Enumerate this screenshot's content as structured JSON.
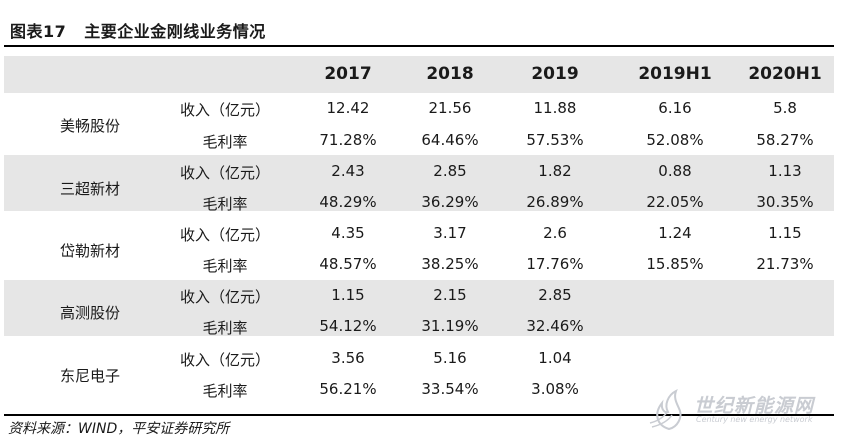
{
  "figure": {
    "number": "图表17",
    "title": "主要企业金刚线业务情况"
  },
  "columns": [
    "2017",
    "2018",
    "2019",
    "2019H1",
    "2020H1"
  ],
  "companies": [
    {
      "name": "美畅股份",
      "rows": [
        {
          "metric": "收入（亿元）",
          "values": [
            "12.42",
            "21.56",
            "11.88",
            "6.16",
            "5.8"
          ]
        },
        {
          "metric": "毛利率",
          "values": [
            "71.28%",
            "64.46%",
            "57.53%",
            "52.08%",
            "58.27%"
          ]
        }
      ]
    },
    {
      "name": "三超新材",
      "rows": [
        {
          "metric": "收入（亿元）",
          "values": [
            "2.43",
            "2.85",
            "1.82",
            "0.88",
            "1.13"
          ]
        },
        {
          "metric": "毛利率",
          "values": [
            "48.29%",
            "36.29%",
            "26.89%",
            "22.05%",
            "30.35%"
          ]
        }
      ]
    },
    {
      "name": "岱勒新材",
      "rows": [
        {
          "metric": "收入（亿元）",
          "values": [
            "4.35",
            "3.17",
            "2.6",
            "1.24",
            "1.15"
          ]
        },
        {
          "metric": "毛利率",
          "values": [
            "48.57%",
            "38.25%",
            "17.76%",
            "15.85%",
            "21.73%"
          ]
        }
      ]
    },
    {
      "name": "高测股份",
      "rows": [
        {
          "metric": "收入（亿元）",
          "values": [
            "1.15",
            "2.15",
            "2.85",
            "",
            ""
          ]
        },
        {
          "metric": "毛利率",
          "values": [
            "54.12%",
            "31.19%",
            "32.46%",
            "",
            ""
          ]
        }
      ]
    },
    {
      "name": "东尼电子",
      "rows": [
        {
          "metric": "收入（亿元）",
          "values": [
            "3.56",
            "5.16",
            "1.04",
            "",
            ""
          ]
        },
        {
          "metric": "毛利率",
          "values": [
            "56.21%",
            "33.54%",
            "3.08%",
            "",
            ""
          ]
        }
      ]
    }
  ],
  "source": "资料来源：WIND，平安证券研究所",
  "watermark": {
    "text": "世纪新能源网",
    "sub": "Century new energy network",
    "color": "#c9ccd2"
  }
}
